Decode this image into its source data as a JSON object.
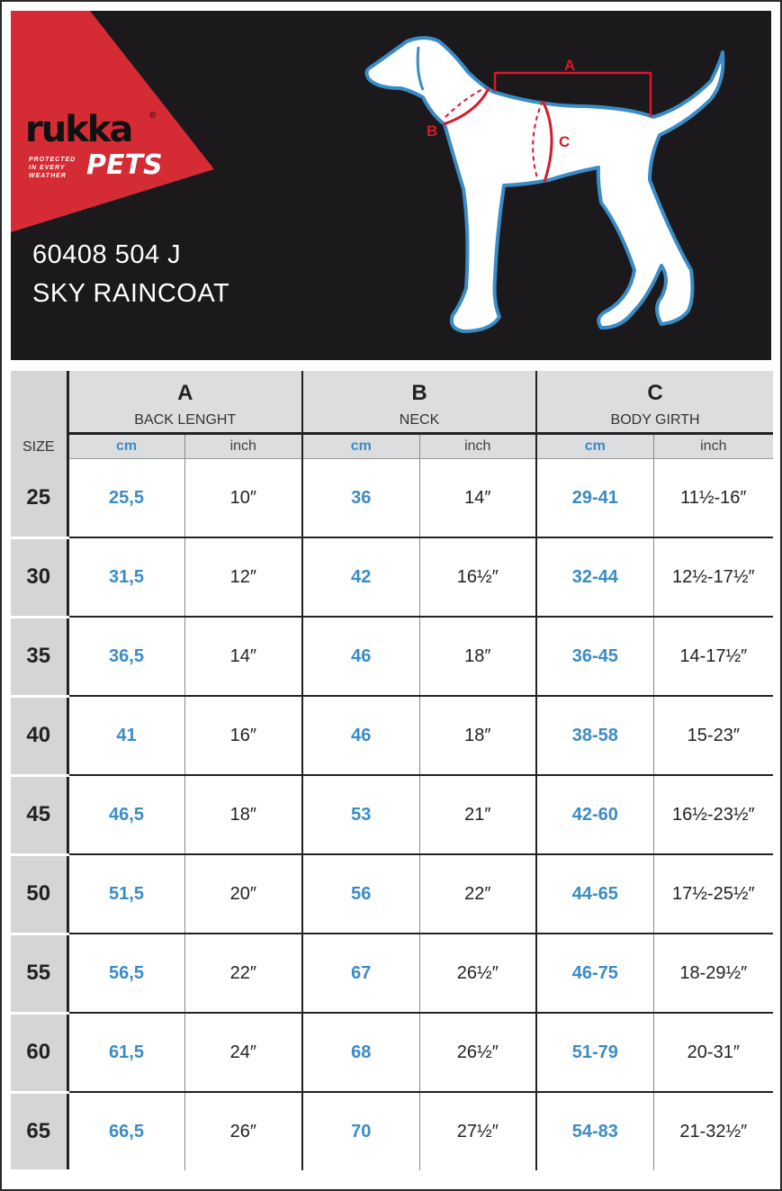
{
  "brand": {
    "name": "rukka",
    "sub": "PETS",
    "tagline": "PROTECTED IN EVERY WEATHER",
    "registered": "®",
    "red": "#d52b35"
  },
  "product": {
    "code": "60408 504 J",
    "name": "SKY RAINCOAT"
  },
  "diagram": {
    "labels": {
      "a": "A",
      "b": "B",
      "c": "C"
    },
    "outline_color": "#3a8cc6",
    "measure_color": "#d6192b"
  },
  "table": {
    "size_label": "SIZE",
    "groups": [
      {
        "letter": "A",
        "name": "BACK LENGHT"
      },
      {
        "letter": "B",
        "name": "NECK"
      },
      {
        "letter": "C",
        "name": "BODY GIRTH"
      }
    ],
    "units": {
      "cm": "cm",
      "inch": "inch"
    },
    "rows": [
      {
        "size": "25",
        "a_cm": "25,5",
        "a_in": "10″",
        "b_cm": "36",
        "b_in": "14″",
        "c_cm": "29-41",
        "c_in": "11½-16″"
      },
      {
        "size": "30",
        "a_cm": "31,5",
        "a_in": "12″",
        "b_cm": "42",
        "b_in": "16½″",
        "c_cm": "32-44",
        "c_in": "12½-17½″"
      },
      {
        "size": "35",
        "a_cm": "36,5",
        "a_in": "14″",
        "b_cm": "46",
        "b_in": "18″",
        "c_cm": "36-45",
        "c_in": "14-17½″"
      },
      {
        "size": "40",
        "a_cm": "41",
        "a_in": "16″",
        "b_cm": "46",
        "b_in": "18″",
        "c_cm": "38-58",
        "c_in": "15-23″"
      },
      {
        "size": "45",
        "a_cm": "46,5",
        "a_in": "18″",
        "b_cm": "53",
        "b_in": "21″",
        "c_cm": "42-60",
        "c_in": "16½-23½″"
      },
      {
        "size": "50",
        "a_cm": "51,5",
        "a_in": "20″",
        "b_cm": "56",
        "b_in": "22″",
        "c_cm": "44-65",
        "c_in": "17½-25½″"
      },
      {
        "size": "55",
        "a_cm": "56,5",
        "a_in": "22″",
        "b_cm": "67",
        "b_in": "26½″",
        "c_cm": "46-75",
        "c_in": "18-29½″"
      },
      {
        "size": "60",
        "a_cm": "61,5",
        "a_in": "24″",
        "b_cm": "68",
        "b_in": "26½″",
        "c_cm": "51-79",
        "c_in": "20-31″"
      },
      {
        "size": "65",
        "a_cm": "66,5",
        "a_in": "26″",
        "b_cm": "70",
        "b_in": "27½″",
        "c_cm": "54-83",
        "c_in": "21-32½″"
      }
    ]
  }
}
